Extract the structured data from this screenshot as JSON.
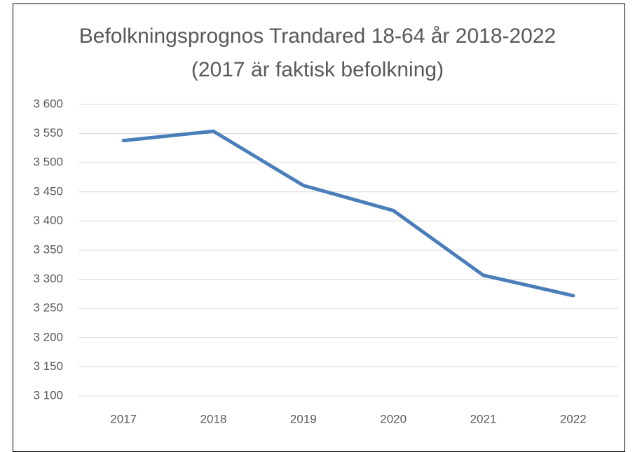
{
  "chart_data": {
    "type": "line",
    "title": "Befolkningsprognos Trandared 18-64 år 2018-2022 (2017 är faktisk befolkning)",
    "categories": [
      "2017",
      "2018",
      "2019",
      "2020",
      "2021",
      "2022"
    ],
    "series": [
      {
        "color": "#4a7ebb",
        "values": [
          3538,
          3554,
          3461,
          3418,
          3307,
          3272
        ]
      }
    ],
    "ylim": [
      3100,
      3600
    ],
    "yticks": [
      {
        "value": 3100,
        "label": "3 100"
      },
      {
        "value": 3150,
        "label": "3 150"
      },
      {
        "value": 3200,
        "label": "3 200"
      },
      {
        "value": 3250,
        "label": "3 250"
      },
      {
        "value": 3300,
        "label": "3 300"
      },
      {
        "value": 3350,
        "label": "3 350"
      },
      {
        "value": 3400,
        "label": "3 400"
      },
      {
        "value": 3450,
        "label": "3 450"
      },
      {
        "value": 3500,
        "label": "3 500"
      },
      {
        "value": 3550,
        "label": "3 550"
      },
      {
        "value": 3600,
        "label": "3 600"
      }
    ],
    "grid": true
  }
}
